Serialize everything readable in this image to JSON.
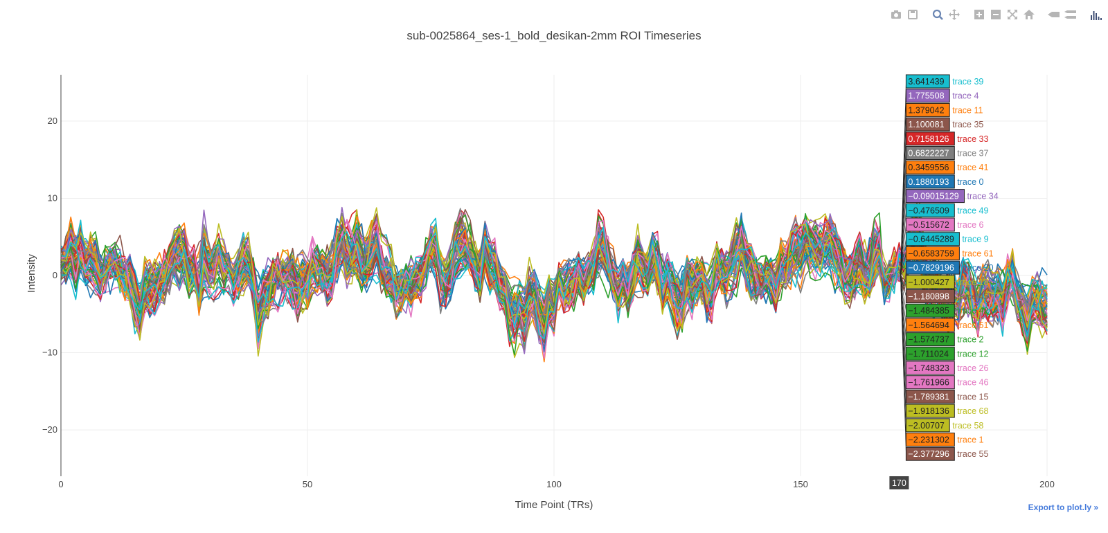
{
  "modebar": {
    "buttons": [
      {
        "name": "camera-icon"
      },
      {
        "name": "save-icon"
      },
      {
        "name": "zoom-icon",
        "active": true
      },
      {
        "name": "pan-icon"
      },
      {
        "name": "zoom-in-icon"
      },
      {
        "name": "zoom-out-icon"
      },
      {
        "name": "autoscale-icon"
      },
      {
        "name": "home-icon"
      },
      {
        "name": "spike-lines-icon"
      },
      {
        "name": "compare-hover-icon"
      },
      {
        "name": "plotly-logo-icon"
      }
    ],
    "color": "#b5b5b5",
    "active_color": "#6b86b3",
    "logo_color": "#3f4f75"
  },
  "export_label": "Export to plot.ly »",
  "chart_data": {
    "type": "line",
    "title": "sub-0025864_ses-1_bold_desikan-2mm ROI Timeseries",
    "xlabel": "Time Point (TRs)",
    "ylabel": "Intensity",
    "xlim": [
      0,
      200
    ],
    "ylim": [
      -26,
      26
    ],
    "xticks": [
      0,
      50,
      100,
      150,
      200
    ],
    "yticks": [
      -20,
      -10,
      0,
      10,
      20
    ],
    "grid": true,
    "n_traces": 70,
    "n_points": 201,
    "hover_x": 170,
    "hover_x_label": "170",
    "palette": [
      "#1f77b4",
      "#ff7f0e",
      "#2ca02c",
      "#d62728",
      "#9467bd",
      "#8c564b",
      "#e377c2",
      "#7f7f7f",
      "#bcbd22",
      "#17becf"
    ],
    "hover_entries": [
      {
        "value": "3.641439",
        "trace": "trace 39",
        "color": "#17becf"
      },
      {
        "value": "1.775508",
        "trace": "trace 4",
        "color": "#9467bd"
      },
      {
        "value": "1.379042",
        "trace": "trace 11",
        "color": "#ff7f0e"
      },
      {
        "value": "1.100081",
        "trace": "trace 35",
        "color": "#8c564b"
      },
      {
        "value": "0.7158126",
        "trace": "trace 33",
        "color": "#d62728"
      },
      {
        "value": "0.6822227",
        "trace": "trace 37",
        "color": "#7f7f7f"
      },
      {
        "value": "0.3459556",
        "trace": "trace 41",
        "color": "#ff7f0e"
      },
      {
        "value": "0.1880193",
        "trace": "trace 0",
        "color": "#1f77b4"
      },
      {
        "value": "−0.09015129",
        "trace": "trace 34",
        "color": "#9467bd"
      },
      {
        "value": "−0.476509",
        "trace": "trace 49",
        "color": "#17becf"
      },
      {
        "value": "−0.515672",
        "trace": "trace 6",
        "color": "#e377c2"
      },
      {
        "value": "−0.6445289",
        "trace": "trace 9",
        "color": "#17becf"
      },
      {
        "value": "−0.6583759",
        "trace": "trace 61",
        "color": "#ff7f0e"
      },
      {
        "value": "−0.7829196",
        "trace": "trace 20",
        "color": "#1f77b4"
      },
      {
        "value": "−1.000427",
        "trace": "trace 18",
        "color": "#bcbd22"
      },
      {
        "value": "−1.180898",
        "trace": "trace 45",
        "color": "#8c564b"
      },
      {
        "value": "−1.484385",
        "trace": "trace 42",
        "color": "#2ca02c"
      },
      {
        "value": "−1.564694",
        "trace": "trace 51",
        "color": "#ff7f0e"
      },
      {
        "value": "−1.574737",
        "trace": "trace 2",
        "color": "#2ca02c"
      },
      {
        "value": "−1.711024",
        "trace": "trace 12",
        "color": "#2ca02c"
      },
      {
        "value": "−1.748323",
        "trace": "trace 26",
        "color": "#e377c2"
      },
      {
        "value": "−1.761966",
        "trace": "trace 46",
        "color": "#e377c2"
      },
      {
        "value": "−1.789381",
        "trace": "trace 15",
        "color": "#8c564b"
      },
      {
        "value": "−1.918136",
        "trace": "trace 68",
        "color": "#bcbd22"
      },
      {
        "value": "−2.00707",
        "trace": "trace 58",
        "color": "#bcbd22"
      },
      {
        "value": "−2.231302",
        "trace": "trace 1",
        "color": "#ff7f0e"
      },
      {
        "value": "−2.377296",
        "trace": "trace 55",
        "color": "#8c564b"
      }
    ]
  }
}
